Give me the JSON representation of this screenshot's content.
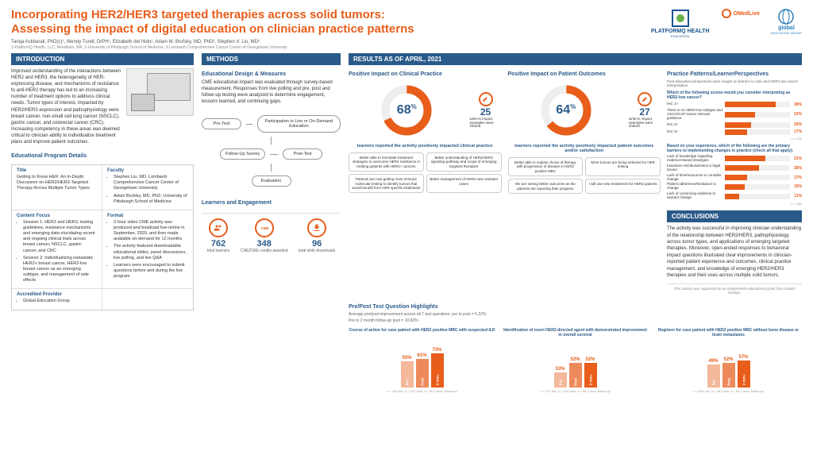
{
  "header": {
    "title_l1": "Incorporating HER2/HER3 targeted therapies across solid tumors:",
    "title_l2": "Assessing the impact of digital education on clinician practice patterns",
    "authors": "Tariqa Ackbarali, PhD(c)¹, Wendy Turell, DrPH¹, Elizabeth del Nido¹, Adam M. Brufsky, MD, PhD², Stephen V. Liu, MD³",
    "affil": "1-PlatformQ Health, LLC, Needham, MA; 2-University of Pittsburgh School of Medicine; 3-Lombardi Comprehensive Cancer Center of Georgetown University",
    "logo_pq": "PLATFORMQ HEALTH",
    "logo_pq_sub": "EDUCATION",
    "logo_om": "OMedLive",
    "logo_gl": "global",
    "logo_gl_sub": "EDUCATION GROUP"
  },
  "intro": {
    "bar": "INTRODUCTION",
    "text": "Improved understanding of the interactions between HER2 and HER3, the heterogeneity of HER-expressing disease, and mechanisms of resistance to anti-HER2 therapy has led to an increasing number of treatment options to address clinical needs. Tumor types of interest, impacted by HER2/HER3 expression and pathophysiology were breast cancer, non-small cell lung cancer (NSCLC), gastric cancer, and colorectal cancer (CRC). Increasing competency in these areas was deemed critical to clinician ability to individualize treatment plans and improve patient outcomes.",
    "sub": "Educational Program Details",
    "title_lbl": "Title",
    "title_val": "Getting to Know HER: An In-Depth Discussion on HER2/HER3-Targeted Therapy Across Multiple Tumor Types",
    "faculty_lbl": "Faculty",
    "faculty": [
      "Stephen Liu, MD, Lombardi Comprehensive Cancer Center of Georgetown University",
      "Adam Brufsky, MD, PhD, University of Pittsburgh School of Medicine"
    ],
    "content_lbl": "Content Focus",
    "content": [
      "Session 1: HER2 and HER3, testing guidelines, resistance mechanisms and emerging data elucidating recent and ongoing clinical trials across breast cancer, NSCLC, gastric cancer, and CRC",
      "Session 2: Individualizing metastatic HER2+ breast cancer, HER2-low breast cancer as an emerging subtype, and management of side effects"
    ],
    "format_lbl": "Format",
    "format": [
      "2-hour video CME activity was produced and boadcast live-online in September, 2020, and then made available on-demand for 12 months",
      "The activity featured downloadable educational slides, panel discussions, live polling, and live Q&A",
      "Learners were encouraged to submit questions before and during the live program"
    ],
    "prov_lbl": "Accredited Provider",
    "prov": "Global Education Group"
  },
  "methods": {
    "bar": "METHODS",
    "sub1": "Educational Design & Measures",
    "text": "CME educational impact was evaluated through survey-based measurement. Responses from live polling and pre, post and follow-up testing were analyzed to determine engagement, lessons learned, and continuing gaps.",
    "flow": {
      "pretest": "Pre-Test",
      "participation": "Participation in Live or On-Demand Education",
      "followup": "Follow-Up Survey",
      "posttest": "Post-Test",
      "eval": "Evaluation"
    },
    "sub2": "Learners and Engagement",
    "le": [
      {
        "num": "762",
        "lbl": "total learners"
      },
      {
        "num": "348",
        "lbl": "CNE/CME credits awarded"
      },
      {
        "num": "96",
        "lbl": "total slide downloads"
      }
    ]
  },
  "results": {
    "bar": "RESULTS AS OF APRIL, 2021",
    "clin": {
      "sub": "Positive Impact on Clinical Practice",
      "pct": "68",
      "pct_sym": "%",
      "wnum": "25",
      "wtxt": "write-in impact examples were shared",
      "cap": "learners reported the activity positively impacted clinical practice",
      "quotes": [
        "Better able to formulate treatment strategies to overcome HER2 resistance in treating patients with HER2+ cancers",
        "Better understanding of HER2/HER3 signaling pathway and scope of emerging targeted therapies",
        "Patients are now getting more immune molecular testing to identify tumors that would benefit from HER specific treatments",
        "Better management of HER2 new resistant cases"
      ]
    },
    "pat": {
      "sub": "Positive Impact on Patient Outcomes",
      "pct": "64",
      "pct_sym": "%",
      "wnum": "27",
      "wtxt": "write-in impact examples were shared",
      "cap": "learners reported the activity positively impacted patient outcomes and/or satisfaction",
      "quotes": [
        "Better able to explain choice of therapy with progression of disease in HER2 positive MBC",
        "More tumors are being selected for HER testing",
        "We are seeing better outcomes as the patients are reporting their progress",
        "I will use new treatments for HER2 patients"
      ]
    },
    "ppq": {
      "sub": "Pre/Post Test Question Highlights",
      "avg1": "Average pre/post improvement across all 7 test questions: pre to post = 5.22%",
      "avg2": "Pre to 2 month follow-up post = 10.82%",
      "charts": [
        {
          "title": "Course of action for case patient with HER2 positive MBC with suspected ILD",
          "bars": [
            {
              "v": 55,
              "lbl": "Pre",
              "c": "#f4b89a"
            },
            {
              "v": 61,
              "lbl": "Post",
              "c": "#ed8a5c"
            },
            {
              "v": 73,
              "lbl": "2 mos.",
              "c": "#e85d1a"
            }
          ],
          "n": "n = 284 pre, n = 167 post, n = 56 2 mos. follow-up"
        },
        {
          "title": "Identification of novel HER2-directed agent with demonstrated improvement in overall survival",
          "bars": [
            {
              "v": 33,
              "lbl": "Pre",
              "c": "#f4b89a"
            },
            {
              "v": 52,
              "lbl": "Post",
              "c": "#ed8a5c"
            },
            {
              "v": 52,
              "lbl": "2 mos.",
              "c": "#e85d1a"
            }
          ],
          "n": "n = 477 pre, n = 222 post, n = 56 2 mos. follow-up"
        },
        {
          "title": "Regimen for case patient with HER2 positive MBC without bone disease or brain metastases",
          "bars": [
            {
              "v": 49,
              "lbl": "Pre",
              "c": "#f4b89a"
            },
            {
              "v": 52,
              "lbl": "Post",
              "c": "#ed8a5c"
            },
            {
              "v": 57,
              "lbl": "2 mos.",
              "c": "#e85d1a"
            }
          ],
          "n": "n = 284 pre, n = 167 post, n = 56 2 mos. follow-up"
        }
      ]
    },
    "pp": {
      "sub": "Practice Patterns/LearnerPerspectives",
      "q1": {
        "q": "Which of the following scores would you consider interpreting as HER2-low cancer?",
        "n": "n = 225",
        "rows": [
          {
            "lbl": "IHC 1+",
            "v": 39
          },
          {
            "lbl": "There is no HER2-low subtype and ASCO/CAP issues relevant guidance",
            "v": 23
          },
          {
            "lbl": "IHC 2+",
            "v": 20
          },
          {
            "lbl": "IHC 3+",
            "v": 17
          }
        ]
      },
      "q2": {
        "q": "Based on your experience, which of the following are the primary barriers to implementing changes in practice (check all that apply):",
        "n": "n = 682",
        "rows": [
          {
            "lbl": "Lack of knowledge regarding evidence-based strategies",
            "v": 31
          },
          {
            "lbl": "Insurance reimbursement or legal issues",
            "v": 26
          },
          {
            "lbl": "Lack of time/resources to consider change",
            "v": 17
          },
          {
            "lbl": "Patient adherence/hesitance to change",
            "v": 15
          },
          {
            "lbl": "Lack of convincing evidence to warrant change",
            "v": 11
          }
        ]
      }
    }
  },
  "concl": {
    "bar": "CONCLUSIONS",
    "text": "The activity was successful in improving clinician understanding of the relationship between HER2/HER3, pathophysiology across tumor types, and applications of emerging targeted therapies. Moreover, open-ended responses to behavioral impact questions illustrated clear improvements in clinician-reported patient experience and outcomes, clinical practice management, and knowledge of emerging HER2/HER3 therapies and their uses across multiple solid tumors.",
    "grant": "This activity was supported by an independent educational grant from Daiichi Sankyo."
  },
  "colors": {
    "orange": "#e85d1a",
    "blue": "#2a5a8a",
    "ltorange": "#f4b89a",
    "mdorange": "#ed8a5c"
  }
}
